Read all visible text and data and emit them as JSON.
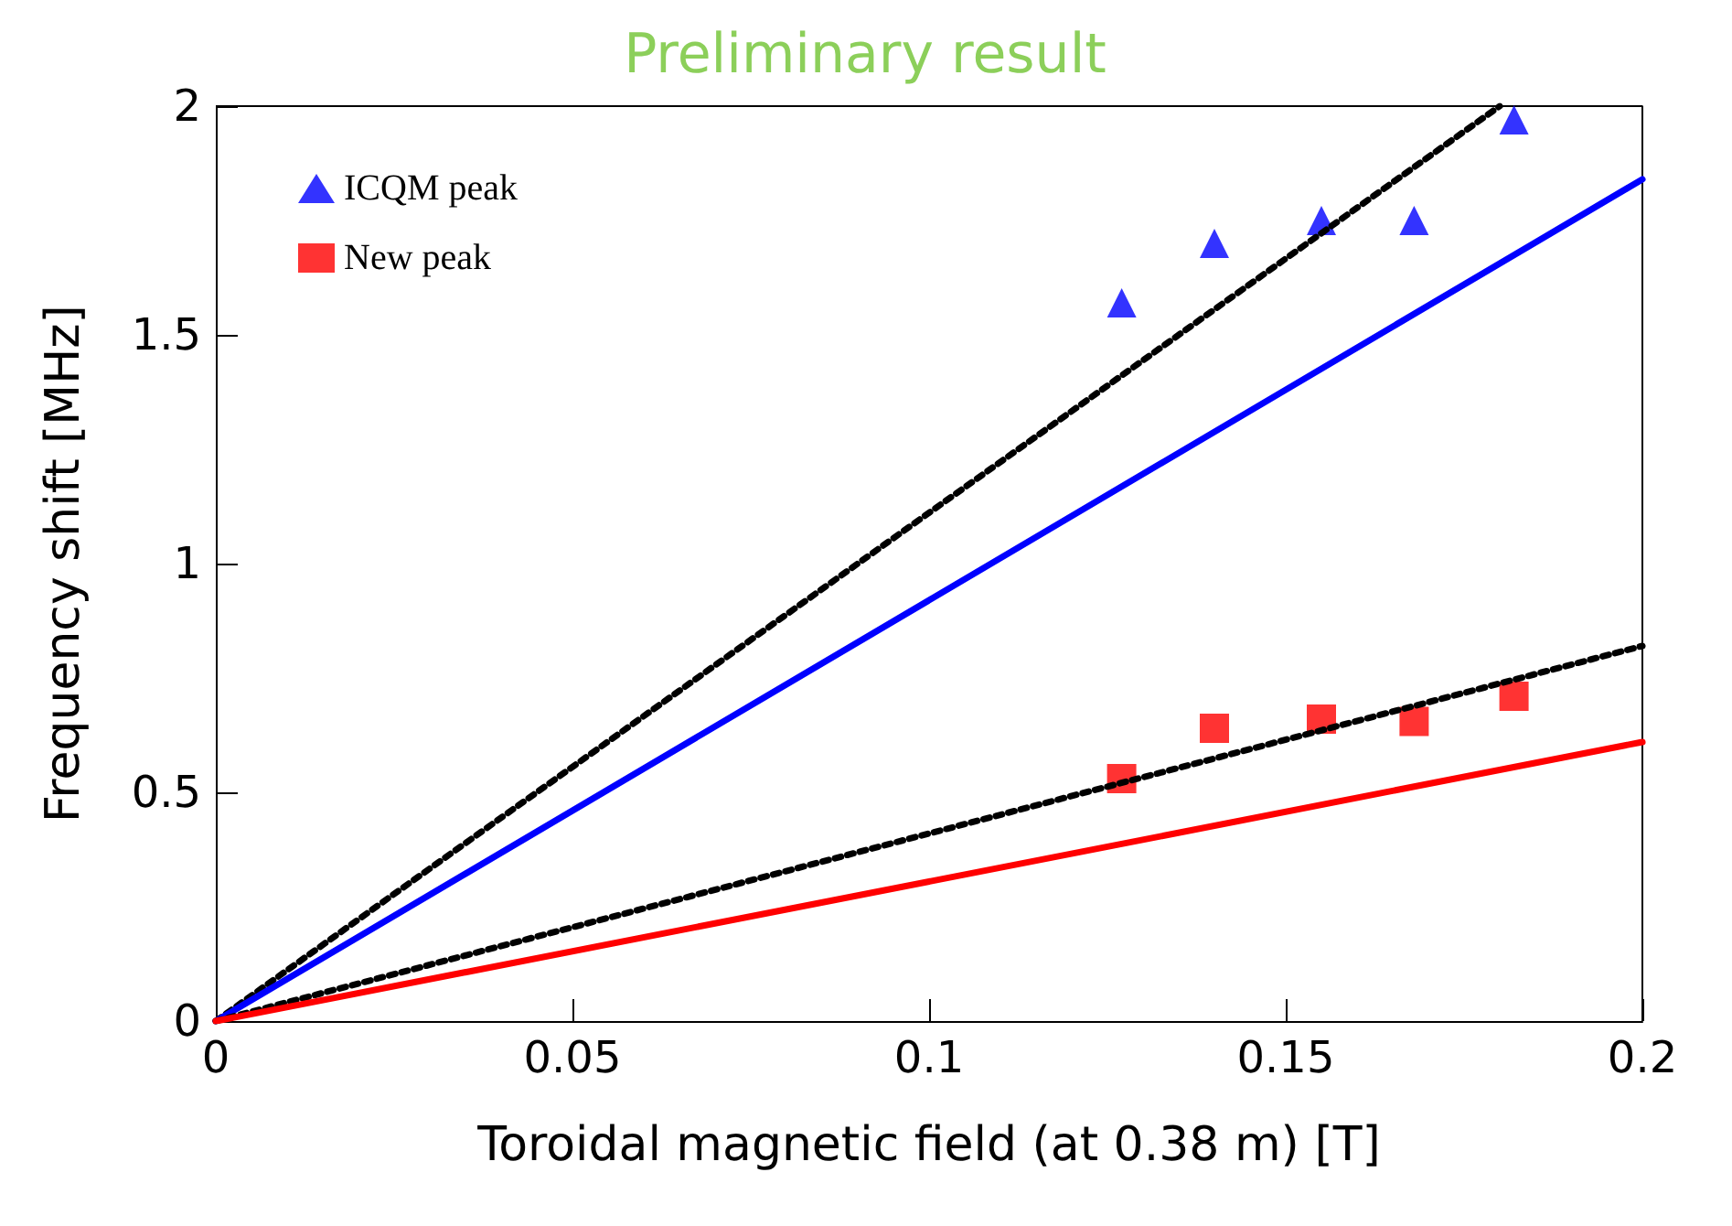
{
  "chart_data": {
    "type": "scatter",
    "title": "Preliminary result",
    "xlabel": "Toroidal magnetic field (at 0.38 m) [T]",
    "ylabel": "Frequency shift [MHz]",
    "xlim": [
      0,
      0.2
    ],
    "xticks": [
      0,
      0.05,
      0.1,
      0.15,
      0.2
    ],
    "ylim": [
      0,
      2
    ],
    "yticks": [
      0,
      0.5,
      1,
      1.5,
      2
    ],
    "grid": false,
    "legend": "top left",
    "series": [
      {
        "name": "ICQM peak",
        "marker": "triangle",
        "color": "#0000ff",
        "x": [
          0.127,
          0.14,
          0.155,
          0.168,
          0.182
        ],
        "values": [
          1.57,
          1.7,
          1.75,
          1.75,
          1.97
        ]
      },
      {
        "name": "New peak",
        "marker": "square",
        "color": "#ff0000",
        "x": [
          0.127,
          0.14,
          0.155,
          0.168,
          0.182
        ],
        "values": [
          0.53,
          0.64,
          0.66,
          0.655,
          0.71
        ]
      },
      {
        "type": "line",
        "marker": "none",
        "line_style": "dotted",
        "color": "#000000",
        "x": [
          0,
          0.18
        ],
        "values": [
          0,
          2.0
        ]
      },
      {
        "type": "line",
        "marker": "none",
        "line_style": "solid",
        "color": "#0000ff",
        "x": [
          0,
          0.2
        ],
        "values": [
          0,
          1.84
        ]
      },
      {
        "type": "line",
        "marker": "none",
        "line_style": "dotted",
        "color": "#000000",
        "x": [
          0,
          0.2
        ],
        "values": [
          0,
          0.82
        ]
      },
      {
        "type": "line",
        "marker": "none",
        "line_style": "solid",
        "color": "#ff0000",
        "x": [
          0,
          0.2
        ],
        "values": [
          0,
          0.61
        ]
      }
    ]
  }
}
